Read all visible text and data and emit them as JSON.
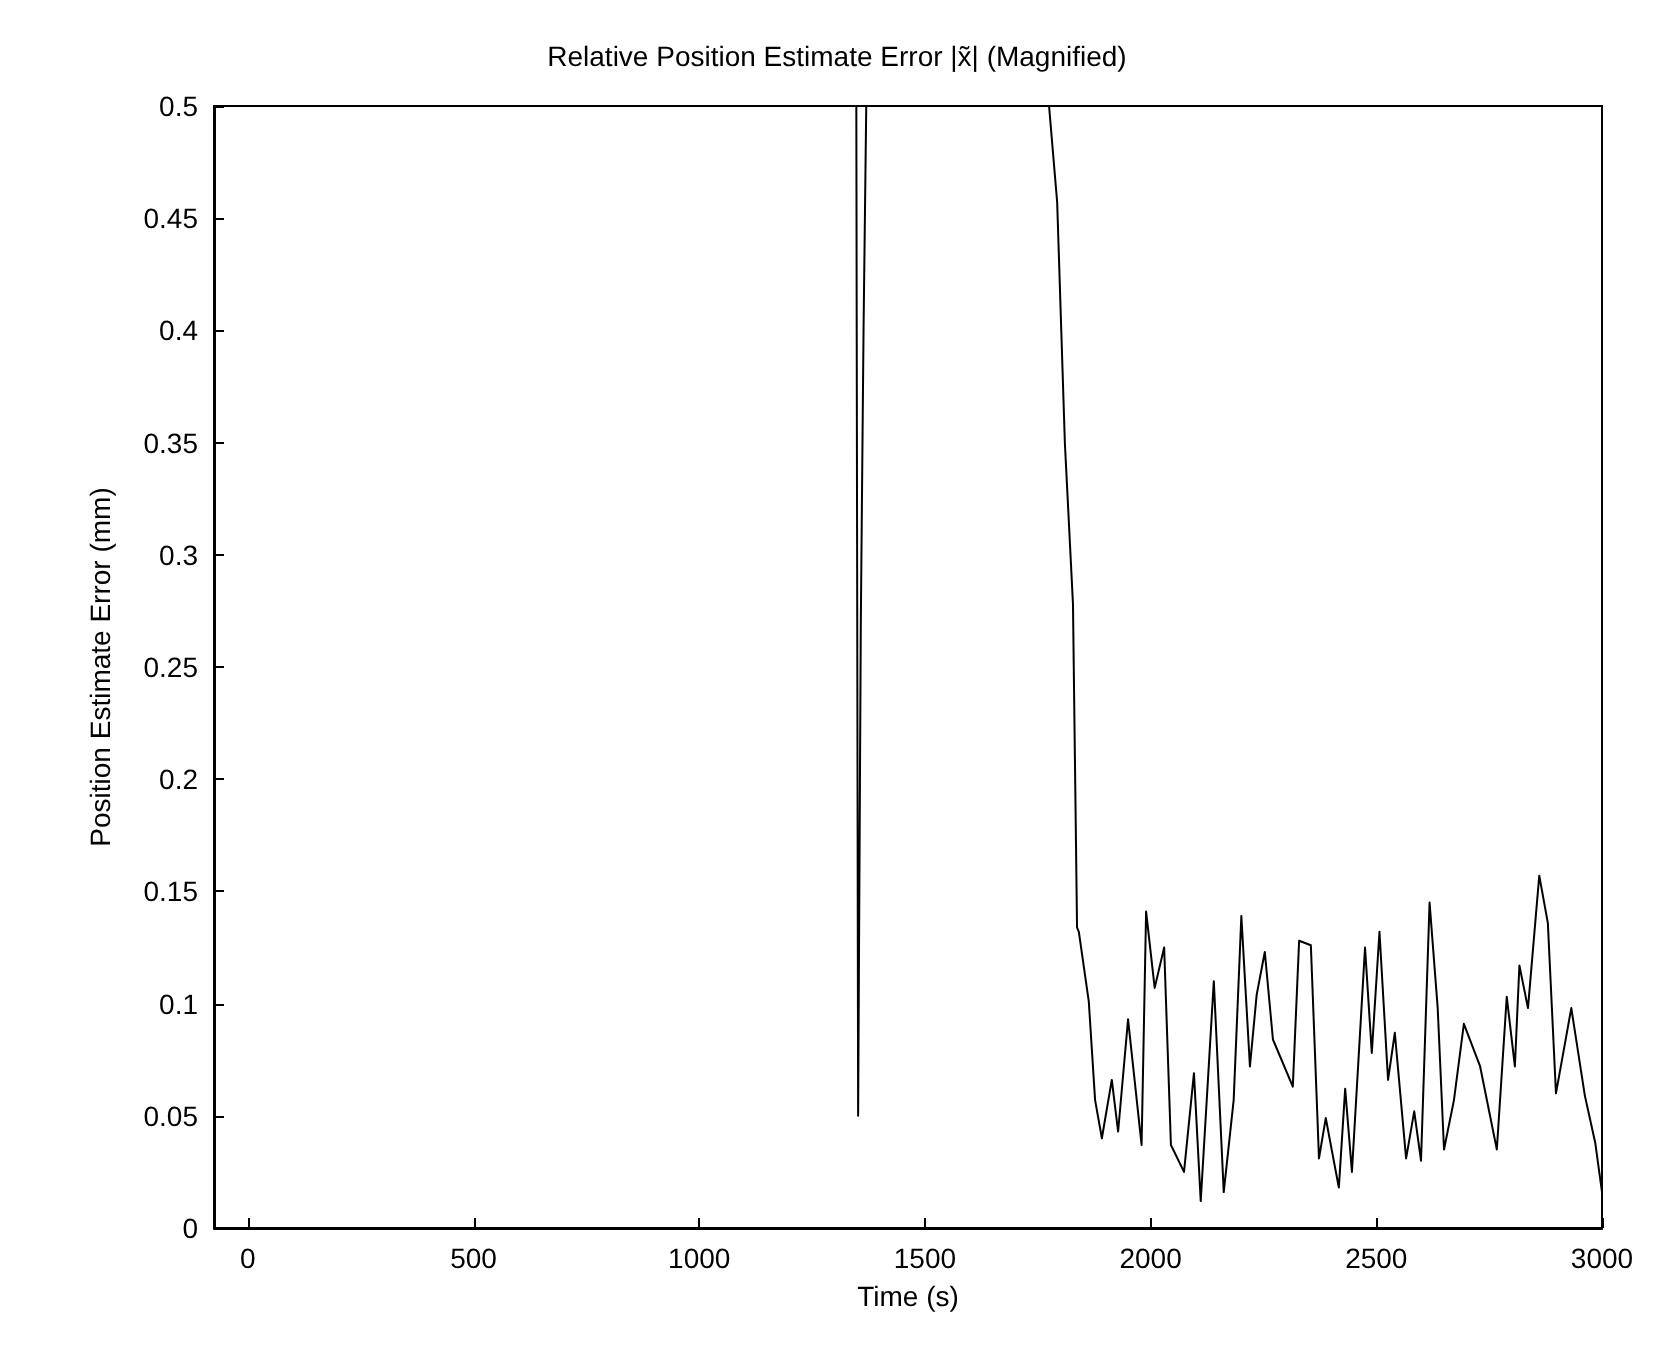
{
  "chart_data": {
    "type": "line",
    "title": "Relative Position Estimate Error |x̃| (Magnified)",
    "xlabel": "Time (s)",
    "ylabel": "Position Estimate Error (mm)",
    "xlim": [
      -75,
      3000
    ],
    "ylim": [
      0,
      0.5
    ],
    "xticks": [
      0,
      500,
      1000,
      1500,
      2000,
      2500,
      3000
    ],
    "yticks": [
      0,
      0.05,
      0.1,
      0.15,
      0.2,
      0.25,
      0.3,
      0.35,
      0.4,
      0.45,
      0.5
    ],
    "marker": "none",
    "line_style": "solid",
    "series": [
      {
        "color": "#000000",
        "x": [
          1348,
          1352,
          1358,
          1364,
          1370,
          1400,
          1775,
          1793,
          1810,
          1828,
          1837,
          1841,
          1863,
          1877,
          1892,
          1914,
          1928,
          1950,
          1980,
          1990,
          2009,
          2030,
          2045,
          2074,
          2096,
          2111,
          2140,
          2162,
          2184,
          2201,
          2220,
          2235,
          2253,
          2271,
          2315,
          2329,
          2355,
          2373,
          2388,
          2417,
          2431,
          2446,
          2475,
          2490,
          2507,
          2526,
          2541,
          2566,
          2584,
          2599,
          2618,
          2636,
          2650,
          2672,
          2694,
          2730,
          2767,
          2789,
          2807,
          2817,
          2836,
          2861,
          2880,
          2898,
          2932,
          2962,
          2985,
          3000
        ],
        "values": [
          0.5,
          0.05,
          0.271,
          0.4,
          0.5,
          null,
          0.5,
          0.457,
          0.35,
          0.278,
          0.134,
          0.132,
          0.101,
          0.057,
          0.04,
          0.066,
          0.043,
          0.093,
          0.037,
          0.141,
          0.107,
          0.125,
          0.037,
          0.025,
          0.069,
          0.012,
          0.11,
          0.016,
          0.057,
          0.139,
          0.072,
          0.104,
          0.123,
          0.084,
          0.063,
          0.128,
          0.126,
          0.031,
          0.049,
          0.018,
          0.062,
          0.025,
          0.125,
          0.078,
          0.132,
          0.066,
          0.087,
          0.031,
          0.052,
          0.03,
          0.145,
          0.098,
          0.035,
          0.057,
          0.091,
          0.072,
          0.035,
          0.103,
          0.072,
          0.117,
          0.098,
          0.157,
          0.136,
          0.06,
          0.098,
          0.059,
          0.038,
          0.016
        ]
      }
    ]
  }
}
